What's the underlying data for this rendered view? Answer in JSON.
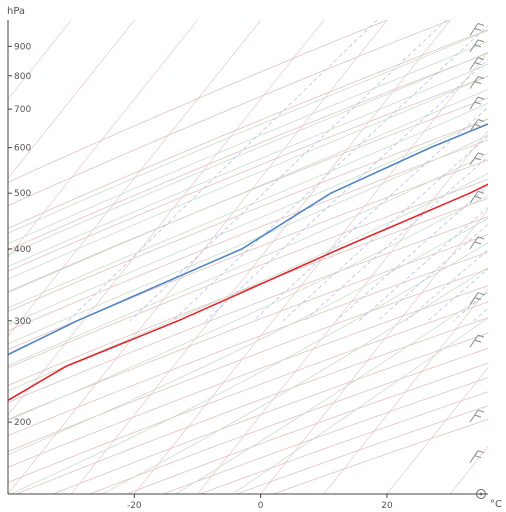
{
  "chart_data": {
    "type": "line",
    "subtype": "skew-t log-p",
    "y_axis": {
      "unit_label": "hPa",
      "scale": "log",
      "range_hpa": [
        1000,
        150
      ],
      "ticks": [
        {
          "p": 900,
          "label": "900"
        },
        {
          "p": 800,
          "label": "800"
        },
        {
          "p": 700,
          "label": "700"
        },
        {
          "p": 600,
          "label": "600"
        },
        {
          "p": 500,
          "label": "500"
        },
        {
          "p": 400,
          "label": "400"
        },
        {
          "p": 300,
          "label": "300"
        },
        {
          "p": 200,
          "label": "200"
        }
      ]
    },
    "x_axis": {
      "unit_label": "°C",
      "range_c_at_bottom": [
        -40,
        36
      ],
      "ticks": [
        {
          "t": -20,
          "label": "-20"
        },
        {
          "t": 0,
          "label": "0"
        },
        {
          "t": 20,
          "label": "20"
        }
      ]
    },
    "series": [
      {
        "color": "#e8232a",
        "points": [
          {
            "p": 1000,
            "t": 14.5
          },
          {
            "p": 975,
            "t": 19.0
          },
          {
            "p": 925,
            "t": 19.0
          },
          {
            "p": 850,
            "t": 19.0
          },
          {
            "p": 800,
            "t": 17.0
          },
          {
            "p": 700,
            "t": 11.0
          },
          {
            "p": 600,
            "t": 4.0
          },
          {
            "p": 500,
            "t": -5.0
          },
          {
            "p": 400,
            "t": -18.5
          },
          {
            "p": 300,
            "t": -35.0
          },
          {
            "p": 250,
            "t": -47.0
          },
          {
            "p": 200,
            "t": -55.0
          },
          {
            "p": 165,
            "t": -51.0
          }
        ]
      },
      {
        "color": "#4f86c6",
        "points": [
          {
            "p": 1000,
            "t": 12.0
          },
          {
            "p": 975,
            "t": 12.5
          },
          {
            "p": 925,
            "t": 11.0
          },
          {
            "p": 850,
            "t": 2.0
          },
          {
            "p": 800,
            "t": -1.0
          },
          {
            "p": 700,
            "t": -7.0
          },
          {
            "p": 600,
            "t": -17.0
          },
          {
            "p": 500,
            "t": -27.0
          },
          {
            "p": 400,
            "t": -34.0
          },
          {
            "p": 300,
            "t": -51.0
          },
          {
            "p": 250,
            "t": -60.0
          },
          {
            "p": 200,
            "t": -69.0
          },
          {
            "p": 150,
            "t": -80.0
          }
        ]
      },
      {
        "color": "#b53b3b",
        "points": [
          {
            "p": 1000,
            "t": 0.0
          },
          {
            "p": 400,
            "t": 30.0
          }
        ]
      }
    ],
    "wind_barbs": {
      "pressures": [
        940,
        880,
        820,
        760,
        700,
        640,
        560,
        480,
        400,
        320,
        270,
        200,
        170
      ],
      "icon": "wind-barb-icon"
    },
    "background": {
      "isotherms_color": "#e9cfcf",
      "dry_adiabats_color": "#e3c2c2",
      "moist_adiabats_color": "#c9dfc9",
      "mixing_ratio_color": "#b8c0ea",
      "grid": true
    }
  }
}
